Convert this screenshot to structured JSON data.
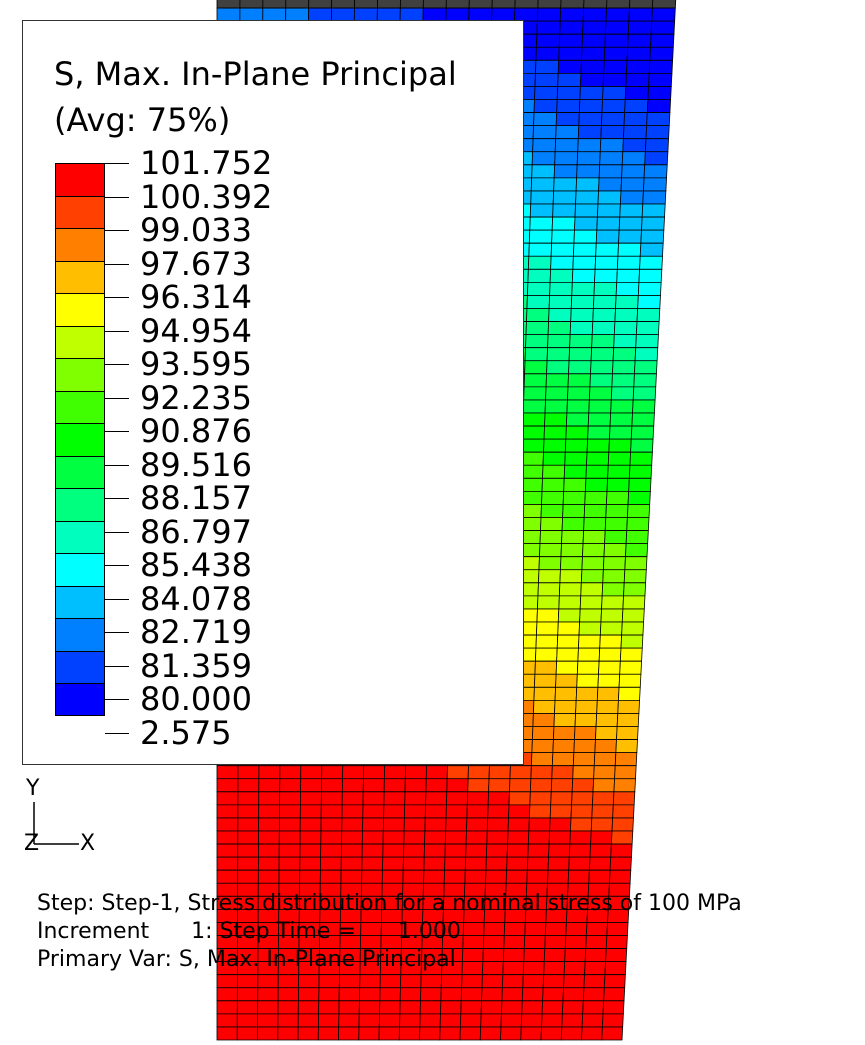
{
  "legend": {
    "title_line1": "S, Max. In-Plane Principal",
    "title_line2": "(Avg: 75%)",
    "values": [
      "101.752",
      "100.392",
      "99.033",
      "97.673",
      "96.314",
      "94.954",
      "93.595",
      "92.235",
      "90.876",
      "89.516",
      "88.157",
      "86.797",
      "85.438",
      "84.078",
      "82.719",
      "81.359",
      "80.000",
      "2.575"
    ],
    "colors": [
      "#ff0000",
      "#ff4000",
      "#ff7f00",
      "#ffbf00",
      "#ffff00",
      "#bfff00",
      "#7fff00",
      "#40ff00",
      "#00ff00",
      "#00ff40",
      "#00ff7f",
      "#00ffbf",
      "#00ffff",
      "#00bfff",
      "#007fff",
      "#0040ff",
      "#0000ff",
      "#404040"
    ]
  },
  "triad": {
    "y_label": "Y",
    "z_label": "Z",
    "x_label": "X"
  },
  "info": {
    "step_line": "Step: Step-1, Stress distribution for a nominal stress of 100 MPa",
    "increment_line": "Increment      1: Step Time =      1.000",
    "primary_var_line": "Primary Var: S, Max. In-Plane Principal"
  }
}
